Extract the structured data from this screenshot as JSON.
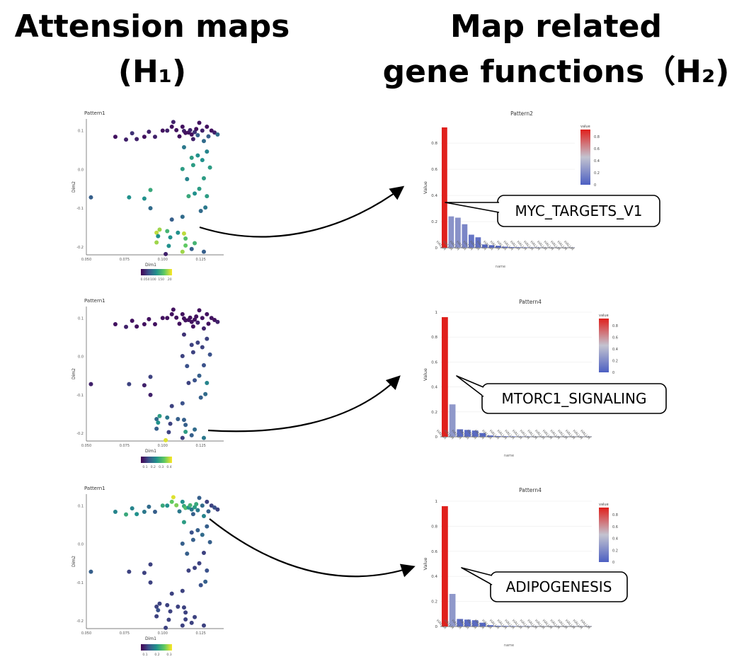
{
  "headings": {
    "left_line1": "Attension maps",
    "left_line2": "(H₁)",
    "right_line1": "Map related",
    "right_line2": "gene functions（H₂)"
  },
  "chart_data": [
    {
      "type": "scatter",
      "title": "Pattern1",
      "xlabel": "Dim1",
      "ylabel": "Dim2",
      "x_ticks": [
        "0.050",
        "0.075",
        "0.100",
        "0.125"
      ],
      "y_ticks": [
        "0.1",
        "0.0",
        "-0.1",
        "-0.2"
      ],
      "xlim": [
        0.05,
        0.14
      ],
      "ylim": [
        -0.22,
        0.13
      ],
      "legend_ticks": [
        "0.050",
        "100",
        "150",
        ".20"
      ],
      "legend_position": "bottom",
      "grid": false,
      "palette": [
        "#440154",
        "#3b528b",
        "#21918c",
        "#5ec962",
        "#fde725"
      ],
      "points": [
        [
          0.053,
          -0.072,
          0.3
        ],
        [
          0.069,
          0.084,
          0.05
        ],
        [
          0.076,
          0.077,
          0.1
        ],
        [
          0.08,
          0.093,
          0.15
        ],
        [
          0.083,
          0.078,
          0.1
        ],
        [
          0.088,
          0.084,
          0.05
        ],
        [
          0.091,
          0.097,
          0.1
        ],
        [
          0.095,
          0.084,
          0.1
        ],
        [
          0.1,
          0.1,
          0.05
        ],
        [
          0.103,
          0.1,
          0.1
        ],
        [
          0.106,
          0.11,
          0.05
        ],
        [
          0.107,
          0.122,
          0.1
        ],
        [
          0.109,
          0.101,
          0.05
        ],
        [
          0.111,
          0.085,
          0.05
        ],
        [
          0.113,
          0.11,
          0.05
        ],
        [
          0.114,
          0.099,
          0.1
        ],
        [
          0.115,
          0.094,
          0.05
        ],
        [
          0.117,
          0.095,
          0.05
        ],
        [
          0.118,
          0.101,
          0.1
        ],
        [
          0.119,
          0.09,
          0.05
        ],
        [
          0.12,
          0.078,
          0.1
        ],
        [
          0.121,
          0.096,
          0.15
        ],
        [
          0.122,
          0.104,
          0.05
        ],
        [
          0.123,
          0.088,
          0.3
        ],
        [
          0.124,
          0.12,
          0.05
        ],
        [
          0.126,
          0.1,
          0.1
        ],
        [
          0.127,
          0.073,
          0.35
        ],
        [
          0.129,
          0.11,
          0.05
        ],
        [
          0.13,
          0.085,
          0.3
        ],
        [
          0.132,
          0.1,
          0.05
        ],
        [
          0.134,
          0.095,
          0.1
        ],
        [
          0.136,
          0.09,
          0.35
        ],
        [
          0.129,
          0.046,
          0.45
        ],
        [
          0.123,
          0.036,
          0.5
        ],
        [
          0.126,
          0.024,
          0.5
        ],
        [
          0.131,
          0.005,
          0.55
        ],
        [
          0.119,
          0.03,
          0.55
        ],
        [
          0.114,
          0.057,
          0.4
        ],
        [
          0.12,
          0.011,
          0.55
        ],
        [
          0.113,
          0.001,
          0.55
        ],
        [
          0.116,
          -0.025,
          0.45
        ],
        [
          0.127,
          -0.023,
          0.55
        ],
        [
          0.124,
          -0.05,
          0.55
        ],
        [
          0.121,
          -0.062,
          0.5
        ],
        [
          0.117,
          -0.069,
          0.6
        ],
        [
          0.129,
          -0.069,
          0.55
        ],
        [
          0.128,
          -0.098,
          0.4
        ],
        [
          0.125,
          -0.107,
          0.35
        ],
        [
          0.113,
          -0.122,
          0.35
        ],
        [
          0.106,
          -0.129,
          0.3
        ],
        [
          0.092,
          -0.053,
          0.6
        ],
        [
          0.078,
          -0.072,
          0.5
        ],
        [
          0.088,
          -0.075,
          0.5
        ],
        [
          0.092,
          -0.1,
          0.35
        ],
        [
          0.098,
          -0.155,
          0.85
        ],
        [
          0.103,
          -0.159,
          0.65
        ],
        [
          0.11,
          -0.163,
          0.5
        ],
        [
          0.096,
          -0.163,
          0.9
        ],
        [
          0.097,
          -0.172,
          0.5
        ],
        [
          0.105,
          -0.175,
          0.5
        ],
        [
          0.114,
          -0.165,
          0.9
        ],
        [
          0.115,
          -0.178,
          0.7
        ],
        [
          0.096,
          -0.188,
          0.85
        ],
        [
          0.104,
          -0.197,
          0.5
        ],
        [
          0.115,
          -0.196,
          0.75
        ],
        [
          0.121,
          -0.19,
          0.65
        ],
        [
          0.113,
          -0.212,
          0.85
        ],
        [
          0.127,
          -0.212,
          0.3
        ],
        [
          0.102,
          -0.218,
          0.1
        ],
        [
          0.119,
          -0.205,
          0.3
        ]
      ]
    },
    {
      "type": "scatter",
      "title": "Pattern1",
      "xlabel": "Dim1",
      "ylabel": "Dim2",
      "x_ticks": [
        "0.050",
        "0.075",
        "0.100",
        "0.125"
      ],
      "y_ticks": [
        "0.1",
        "0.0",
        "-0.1",
        "-0.2"
      ],
      "xlim": [
        0.05,
        0.14
      ],
      "ylim": [
        -0.22,
        0.13
      ],
      "legend_ticks": [
        "0.1",
        "0.2",
        "0.3",
        "0.4"
      ],
      "legend_position": "bottom",
      "grid": false,
      "palette": [
        "#440154",
        "#3b528b",
        "#21918c",
        "#5ec962",
        "#fde725"
      ],
      "points": [
        [
          0.053,
          -0.072,
          0.1
        ],
        [
          0.069,
          0.084,
          0.05
        ],
        [
          0.076,
          0.077,
          0.1
        ],
        [
          0.08,
          0.093,
          0.05
        ],
        [
          0.083,
          0.078,
          0.05
        ],
        [
          0.088,
          0.084,
          0.05
        ],
        [
          0.091,
          0.097,
          0.05
        ],
        [
          0.095,
          0.084,
          0.05
        ],
        [
          0.1,
          0.1,
          0.05
        ],
        [
          0.103,
          0.1,
          0.05
        ],
        [
          0.106,
          0.11,
          0.05
        ],
        [
          0.107,
          0.122,
          0.05
        ],
        [
          0.109,
          0.101,
          0.05
        ],
        [
          0.111,
          0.085,
          0.05
        ],
        [
          0.113,
          0.11,
          0.05
        ],
        [
          0.114,
          0.099,
          0.05
        ],
        [
          0.115,
          0.094,
          0.05
        ],
        [
          0.117,
          0.095,
          0.05
        ],
        [
          0.118,
          0.101,
          0.05
        ],
        [
          0.119,
          0.09,
          0.05
        ],
        [
          0.12,
          0.078,
          0.05
        ],
        [
          0.121,
          0.096,
          0.05
        ],
        [
          0.122,
          0.104,
          0.05
        ],
        [
          0.123,
          0.088,
          0.1
        ],
        [
          0.124,
          0.12,
          0.05
        ],
        [
          0.126,
          0.1,
          0.05
        ],
        [
          0.127,
          0.073,
          0.1
        ],
        [
          0.129,
          0.11,
          0.05
        ],
        [
          0.13,
          0.085,
          0.05
        ],
        [
          0.132,
          0.1,
          0.05
        ],
        [
          0.134,
          0.095,
          0.05
        ],
        [
          0.136,
          0.09,
          0.1
        ],
        [
          0.129,
          0.046,
          0.2
        ],
        [
          0.123,
          0.036,
          0.2
        ],
        [
          0.126,
          0.024,
          0.2
        ],
        [
          0.131,
          0.005,
          0.25
        ],
        [
          0.119,
          0.03,
          0.2
        ],
        [
          0.114,
          0.057,
          0.15
        ],
        [
          0.12,
          0.011,
          0.2
        ],
        [
          0.113,
          0.001,
          0.2
        ],
        [
          0.116,
          -0.025,
          0.25
        ],
        [
          0.127,
          -0.023,
          0.25
        ],
        [
          0.124,
          -0.05,
          0.3
        ],
        [
          0.121,
          -0.062,
          0.25
        ],
        [
          0.117,
          -0.069,
          0.2
        ],
        [
          0.129,
          -0.069,
          0.45
        ],
        [
          0.128,
          -0.098,
          0.35
        ],
        [
          0.125,
          -0.107,
          0.3
        ],
        [
          0.113,
          -0.122,
          0.25
        ],
        [
          0.106,
          -0.129,
          0.2
        ],
        [
          0.092,
          -0.053,
          0.2
        ],
        [
          0.078,
          -0.072,
          0.2
        ],
        [
          0.088,
          -0.075,
          0.1
        ],
        [
          0.092,
          -0.1,
          0.1
        ],
        [
          0.098,
          -0.155,
          0.55
        ],
        [
          0.103,
          -0.159,
          0.4
        ],
        [
          0.11,
          -0.163,
          0.3
        ],
        [
          0.096,
          -0.163,
          0.35
        ],
        [
          0.097,
          -0.172,
          0.5
        ],
        [
          0.105,
          -0.175,
          0.2
        ],
        [
          0.114,
          -0.165,
          0.3
        ],
        [
          0.115,
          -0.178,
          0.3
        ],
        [
          0.096,
          -0.188,
          0.3
        ],
        [
          0.104,
          -0.197,
          0.2
        ],
        [
          0.115,
          -0.196,
          0.55
        ],
        [
          0.121,
          -0.19,
          0.35
        ],
        [
          0.113,
          -0.212,
          0.2
        ],
        [
          0.127,
          -0.212,
          0.4
        ],
        [
          0.102,
          -0.218,
          0.95
        ],
        [
          0.119,
          -0.205,
          0.3
        ]
      ]
    },
    {
      "type": "scatter",
      "title": "Pattern1",
      "xlabel": "Dim1",
      "ylabel": "Dim2",
      "x_ticks": [
        "0.050",
        "0.075",
        "0.100",
        "0.125"
      ],
      "y_ticks": [
        "0.1",
        "0.0",
        "-0.1",
        "-0.2"
      ],
      "xlim": [
        0.05,
        0.14
      ],
      "ylim": [
        -0.22,
        0.13
      ],
      "legend_ticks": [
        "0.1",
        "0.2",
        "0.3"
      ],
      "legend_position": "bottom",
      "grid": false,
      "palette": [
        "#440154",
        "#3b528b",
        "#21918c",
        "#5ec962",
        "#fde725"
      ],
      "points": [
        [
          0.053,
          -0.072,
          0.3
        ],
        [
          0.069,
          0.084,
          0.45
        ],
        [
          0.076,
          0.077,
          0.6
        ],
        [
          0.08,
          0.093,
          0.45
        ],
        [
          0.083,
          0.078,
          0.5
        ],
        [
          0.088,
          0.084,
          0.4
        ],
        [
          0.091,
          0.097,
          0.35
        ],
        [
          0.095,
          0.084,
          0.3
        ],
        [
          0.1,
          0.1,
          0.6
        ],
        [
          0.103,
          0.1,
          0.5
        ],
        [
          0.106,
          0.11,
          0.75
        ],
        [
          0.107,
          0.122,
          0.95
        ],
        [
          0.109,
          0.101,
          0.8
        ],
        [
          0.111,
          0.085,
          0.4
        ],
        [
          0.113,
          0.11,
          0.5
        ],
        [
          0.114,
          0.099,
          0.6
        ],
        [
          0.115,
          0.094,
          0.7
        ],
        [
          0.117,
          0.095,
          0.5
        ],
        [
          0.118,
          0.101,
          0.65
        ],
        [
          0.119,
          0.09,
          0.4
        ],
        [
          0.12,
          0.078,
          0.3
        ],
        [
          0.121,
          0.096,
          0.55
        ],
        [
          0.122,
          0.104,
          0.6
        ],
        [
          0.123,
          0.088,
          0.4
        ],
        [
          0.124,
          0.12,
          0.3
        ],
        [
          0.126,
          0.1,
          0.35
        ],
        [
          0.127,
          0.073,
          0.45
        ],
        [
          0.129,
          0.11,
          0.2
        ],
        [
          0.13,
          0.085,
          0.3
        ],
        [
          0.132,
          0.1,
          0.2
        ],
        [
          0.134,
          0.095,
          0.25
        ],
        [
          0.136,
          0.09,
          0.2
        ],
        [
          0.129,
          0.046,
          0.3
        ],
        [
          0.123,
          0.036,
          0.3
        ],
        [
          0.126,
          0.024,
          0.35
        ],
        [
          0.131,
          0.005,
          0.3
        ],
        [
          0.119,
          0.03,
          0.25
        ],
        [
          0.114,
          0.057,
          0.55
        ],
        [
          0.12,
          0.011,
          0.3
        ],
        [
          0.113,
          0.001,
          0.3
        ],
        [
          0.116,
          -0.025,
          0.3
        ],
        [
          0.127,
          -0.023,
          0.2
        ],
        [
          0.124,
          -0.05,
          0.2
        ],
        [
          0.121,
          -0.062,
          0.2
        ],
        [
          0.117,
          -0.069,
          0.2
        ],
        [
          0.129,
          -0.069,
          0.25
        ],
        [
          0.128,
          -0.098,
          0.3
        ],
        [
          0.125,
          -0.107,
          0.25
        ],
        [
          0.113,
          -0.122,
          0.2
        ],
        [
          0.106,
          -0.129,
          0.2
        ],
        [
          0.092,
          -0.053,
          0.2
        ],
        [
          0.078,
          -0.072,
          0.2
        ],
        [
          0.088,
          -0.075,
          0.2
        ],
        [
          0.092,
          -0.1,
          0.2
        ],
        [
          0.098,
          -0.155,
          0.2
        ],
        [
          0.103,
          -0.159,
          0.2
        ],
        [
          0.11,
          -0.163,
          0.2
        ],
        [
          0.096,
          -0.163,
          0.2
        ],
        [
          0.097,
          -0.172,
          0.25
        ],
        [
          0.105,
          -0.175,
          0.2
        ],
        [
          0.114,
          -0.165,
          0.2
        ],
        [
          0.115,
          -0.178,
          0.2
        ],
        [
          0.096,
          -0.188,
          0.2
        ],
        [
          0.104,
          -0.197,
          0.2
        ],
        [
          0.115,
          -0.196,
          0.2
        ],
        [
          0.121,
          -0.19,
          0.2
        ],
        [
          0.113,
          -0.212,
          0.2
        ],
        [
          0.127,
          -0.212,
          0.2
        ],
        [
          0.102,
          -0.218,
          0.2
        ],
        [
          0.119,
          -0.205,
          0.2
        ]
      ]
    },
    {
      "type": "bar",
      "title": "Pattern2",
      "ylabel": "Value",
      "xlabel": "name",
      "ylim": [
        0,
        0.92
      ],
      "y_ticks": [
        0,
        0.2,
        0.4,
        0.6,
        0.8
      ],
      "grid": true,
      "category_label": "HALLM",
      "categories_count": 20,
      "values": [
        0.92,
        0.24,
        0.23,
        0.18,
        0.1,
        0.08,
        0.025,
        0.02,
        0.015,
        0.008,
        0.005,
        0.004,
        0.003,
        0.002,
        0.002,
        0.001,
        0.001,
        0.001,
        0.001,
        0.001
      ],
      "legend_title": "value",
      "legend_ticks": [
        "0.8",
        "0.6",
        "0.4",
        "0.2",
        "0"
      ],
      "legend_position": "top-right",
      "colorscale": [
        "#4c5fc2",
        "#c3c3d0",
        "#e0201c"
      ],
      "annotation": "MYC_TARGETS_V1"
    },
    {
      "type": "bar",
      "title": "Pattern4",
      "ylabel": "Value",
      "xlabel": "name",
      "ylim": [
        0,
        1
      ],
      "y_ticks": [
        0,
        0.2,
        0.4,
        0.6,
        0.8,
        1
      ],
      "grid": true,
      "category_label": "HALLM",
      "categories_count": 20,
      "values": [
        0.96,
        0.26,
        0.06,
        0.055,
        0.05,
        0.03,
        0.01,
        0.005,
        0.004,
        0.003,
        0.002,
        0.002,
        0.001,
        0.001,
        0.001,
        0.001,
        0.001,
        0.001,
        0.001,
        0.001
      ],
      "legend_title": "value",
      "legend_ticks": [
        "0.8",
        "0.6",
        "0.4",
        "0.2",
        "0"
      ],
      "legend_position": "top-right",
      "colorscale": [
        "#4c5fc2",
        "#c3c3d0",
        "#e0201c"
      ],
      "annotation": "MTORC1_SIGNALING"
    },
    {
      "type": "bar",
      "title": "Pattern4",
      "ylabel": "Value",
      "xlabel": "name",
      "ylim": [
        0,
        1
      ],
      "y_ticks": [
        0,
        0.2,
        0.4,
        0.6,
        0.8,
        1
      ],
      "grid": true,
      "category_label": "HALLM",
      "categories_count": 20,
      "values": [
        0.96,
        0.26,
        0.06,
        0.055,
        0.05,
        0.03,
        0.01,
        0.005,
        0.004,
        0.003,
        0.002,
        0.002,
        0.001,
        0.001,
        0.001,
        0.001,
        0.001,
        0.001,
        0.001,
        0.001
      ],
      "legend_title": "value",
      "legend_ticks": [
        "0.8",
        "0.6",
        "0.4",
        "0.2",
        "0"
      ],
      "legend_position": "top-right",
      "colorscale": [
        "#4c5fc2",
        "#c3c3d0",
        "#e0201c"
      ],
      "annotation": "ADIPOGENESIS"
    }
  ]
}
